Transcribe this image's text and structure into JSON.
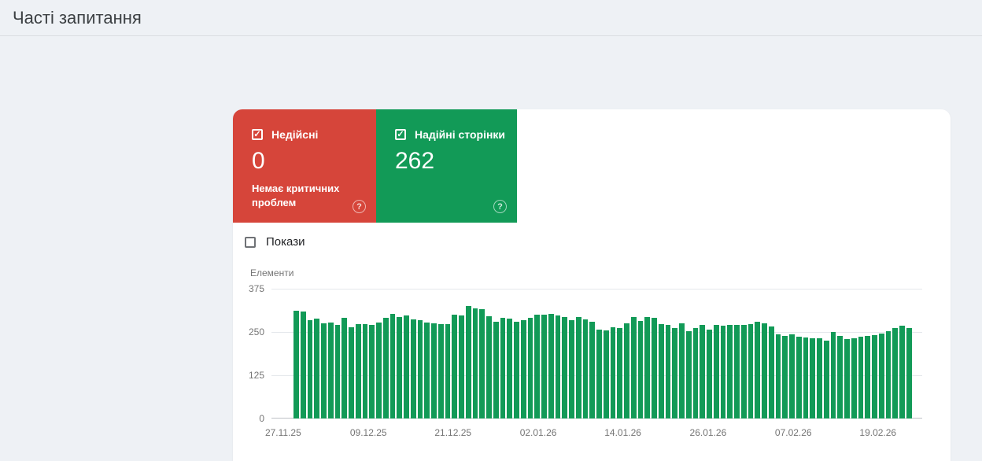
{
  "page": {
    "title": "Часті запитання"
  },
  "icons": {
    "check": "✓",
    "help": "?"
  },
  "colors": {
    "invalid_red": "#d6453a",
    "valid_green": "#129a57",
    "bar_green": "#129a57",
    "page_background": "#eef1f5",
    "axis_text": "#757575"
  },
  "cards": {
    "invalid": {
      "label": "Недійсні",
      "value": "0",
      "subtitle": "Немає критичних проблем",
      "checked": true
    },
    "valid": {
      "label": "Надійні сторінки",
      "value": "262",
      "checked": true
    }
  },
  "impressions_toggle": {
    "label": "Покази",
    "checked": false
  },
  "chart_data": {
    "type": "bar",
    "title": "",
    "ylabel": "Елементи",
    "xlabel": "",
    "ylim": [
      0,
      375
    ],
    "yticks": [
      375,
      250,
      125,
      0
    ],
    "grid": true,
    "legend": "none",
    "x_tick_labels": [
      "27.11.25",
      "09.12.25",
      "21.12.25",
      "02.01.26",
      "14.01.26",
      "26.01.26",
      "07.02.26",
      "19.02.26"
    ],
    "x_tick_positions_pct": [
      1.8,
      14.9,
      27.9,
      41.0,
      54.0,
      67.1,
      80.2,
      93.2
    ],
    "series": [
      {
        "name": "Надійні сторінки",
        "color": "#129a57",
        "values": [
          312,
          310,
          285,
          289,
          276,
          277,
          270,
          290,
          264,
          273,
          272,
          271,
          277,
          292,
          302,
          293,
          297,
          286,
          283,
          278,
          274,
          272,
          272,
          300,
          297,
          325,
          318,
          315,
          296,
          280,
          290,
          288,
          279,
          283,
          291,
          301,
          299,
          302,
          298,
          294,
          283,
          294,
          286,
          279,
          257,
          255,
          264,
          261,
          274,
          293,
          282,
          294,
          290,
          273,
          271,
          261,
          276,
          253,
          261,
          271,
          257,
          270,
          268,
          271,
          271,
          270,
          273,
          279,
          276,
          265,
          243,
          239,
          244,
          237,
          234,
          232,
          232,
          226,
          251,
          239,
          229,
          231,
          236,
          238,
          240,
          246,
          253,
          262,
          268,
          262
        ]
      }
    ]
  }
}
